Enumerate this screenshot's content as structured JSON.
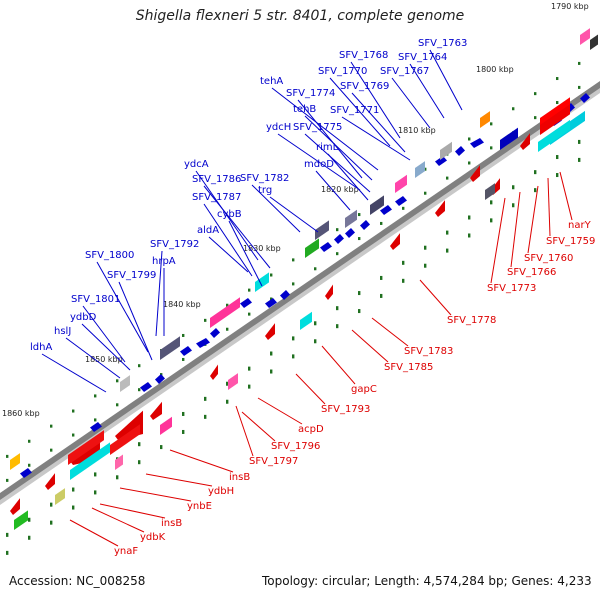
{
  "title": "Shigella flexneri 5 str. 8401, complete genome",
  "footer": {
    "accession": "Accession: NC_008258",
    "summary": "Topology: circular; Length: 4,574,284 bp; Genes: 4,233"
  },
  "colors": {
    "plus": "#0000cc",
    "minus": "#dd0000",
    "backbone": "#808080",
    "tick": "#207020"
  },
  "tick_labels": [
    "1790 kbp",
    "1800 kbp",
    "1810 kbp",
    "1820 kbp",
    "1830 kbp",
    "1840 kbp",
    "1850 kbp",
    "1860 kbp"
  ],
  "labels_plus": [
    "SFV_1763",
    "SFV_1764",
    "SFV_1767",
    "SFV_1768",
    "SFV_1770",
    "SFV_1769",
    "tehA",
    "SFV_1774",
    "tehB",
    "SFV_1771",
    "ydcH",
    "SFV_1775",
    "rimL",
    "mdoD",
    "ydcA",
    "SFV_1786",
    "SFV_1782",
    "trg",
    "SFV_1787",
    "cybB",
    "aldA",
    "SFV_1792",
    "hrpA",
    "SFV_1800",
    "SFV_1799",
    "SFV_1801",
    "ydbD",
    "hslJ",
    "ldhA"
  ],
  "labels_minus": [
    "narY",
    "SFV_1759",
    "SFV_1760",
    "SFV_1766",
    "SFV_1773",
    "SFV_1778",
    "SFV_1783",
    "SFV_1785",
    "gapC",
    "SFV_1793",
    "acpD",
    "SFV_1796",
    "SFV_1797",
    "insB",
    "ydbH",
    "ynbE",
    "insB",
    "ydbK",
    "ynaF"
  ]
}
